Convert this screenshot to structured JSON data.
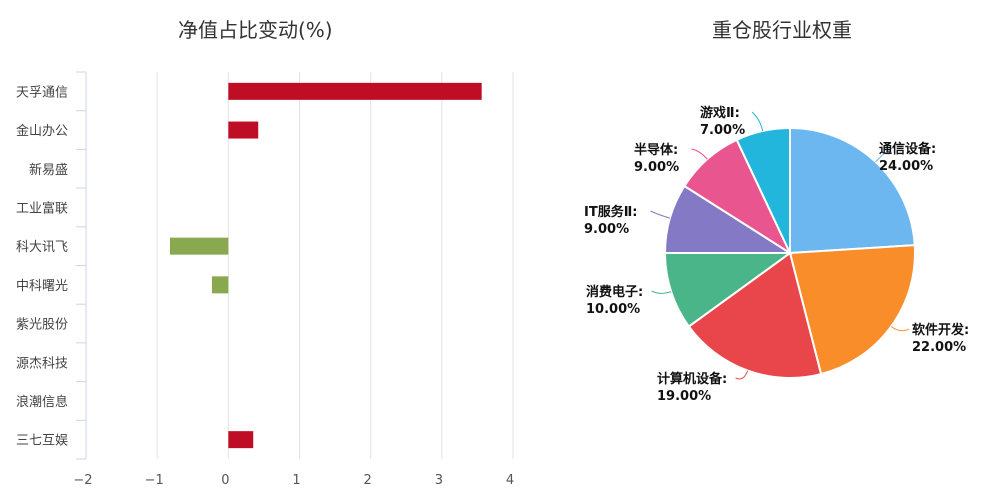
{
  "chart_data": [
    {
      "type": "bar",
      "orientation": "horizontal",
      "title": "净值占比变动(%)",
      "categories": [
        "天孚通信",
        "金山办公",
        "新易盛",
        "工业富联",
        "科大讯飞",
        "中科曙光",
        "紫光股份",
        "源杰科技",
        "浪潮信息",
        "三七互娱"
      ],
      "values": [
        3.56,
        0.42,
        0,
        0,
        -0.82,
        -0.23,
        0,
        0,
        0,
        0.35
      ],
      "xlabel": "",
      "ylabel": "",
      "xlim": [
        -2,
        4
      ],
      "xticks": [
        "-2",
        "-1",
        "0",
        "1",
        "2",
        "3",
        "4"
      ],
      "grid": true,
      "colors": {
        "positive": "#c00d26",
        "negative": "#8aa84f"
      }
    },
    {
      "type": "pie",
      "title": "重仓股行业权重",
      "labels": [
        "通信设备",
        "软件开发",
        "计算机设备",
        "消费电子",
        "IT服务Ⅱ",
        "半导体",
        "游戏Ⅱ"
      ],
      "values": [
        24.0,
        22.0,
        19.0,
        10.0,
        9.0,
        9.0,
        7.0
      ],
      "value_labels": [
        "24.00%",
        "22.00%",
        "19.00%",
        "10.00%",
        "9.00%",
        "9.00%",
        "7.00%"
      ],
      "colors": [
        "#6cb7f0",
        "#f88d2a",
        "#e8464b",
        "#4bb58a",
        "#8479c4",
        "#e8558f",
        "#22b6dc"
      ],
      "start_angle": "12 o'clock, clockwise"
    }
  ]
}
